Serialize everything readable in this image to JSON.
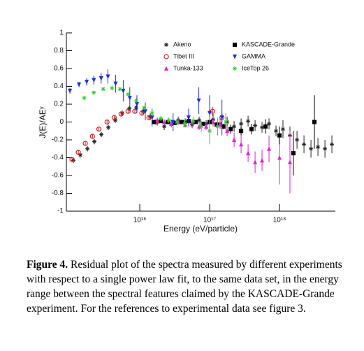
{
  "chart_data": {
    "type": "scatter",
    "log_x": true,
    "x_label": "Energy (eV/particle)",
    "y_label": "J(E)/AEᵞ",
    "xlim": [
      890000000000000.0,
      6.3e+18
    ],
    "ylim": [
      -1,
      1
    ],
    "xticks": [
      {
        "value": 1e+16,
        "label": "10¹⁶"
      },
      {
        "value": 1e+17,
        "label": "10¹⁷"
      },
      {
        "value": 1e+18,
        "label": "10¹⁸"
      }
    ],
    "yticks": [
      1,
      0.8,
      0.6,
      0.4,
      0.2,
      0,
      -0.2,
      -0.4,
      -0.6,
      -0.8,
      -1
    ],
    "legend": "upper right",
    "series": [
      {
        "name": "Akeno",
        "color": "#222222",
        "marker": "star",
        "x": [
          1120000000000000.0,
          1410000000000000.0,
          1780000000000000.0,
          2240000000000000.0,
          2820000000000000.0,
          3550000000000000.0,
          4470000000000000.0,
          5620000000000000.0,
          7080000000000000.0,
          8910000000000000.0,
          1.12e+16,
          1.41e+16,
          1.78e+16,
          2.24e+16,
          2.82e+16,
          3.55e+16,
          4.47e+16,
          5.62e+16,
          7.08e+16,
          8.91e+16,
          1.12e+17,
          1.41e+17,
          1.78e+17,
          2.24e+17,
          2.82e+17,
          3.55e+17,
          4.47e+17,
          5.62e+17,
          7.08e+17,
          8.91e+17,
          1.12e+18,
          1.41e+18,
          1.78e+18,
          2.24e+18,
          2.82e+18,
          3.55e+18,
          4.47e+18,
          5.62e+18
        ],
        "values": [
          -0.43,
          -0.37,
          -0.3,
          -0.22,
          -0.14,
          -0.06,
          0.02,
          0.1,
          0.15,
          0.16,
          0.12,
          0.06,
          0.0,
          -0.05,
          -0.02,
          0.02,
          0.0,
          -0.03,
          0.02,
          -0.02,
          0.03,
          -0.02,
          0.0,
          -0.05,
          -0.02,
          0.01,
          -0.04,
          -0.06,
          -0.02,
          -0.1,
          -0.08,
          -0.15,
          -0.2,
          -0.25,
          -0.3,
          -0.28,
          -0.3,
          -0.25
        ],
        "errors": [
          0.03,
          0.03,
          0.03,
          0.03,
          0.03,
          0.03,
          0.03,
          0.03,
          0.03,
          0.03,
          0.04,
          0.04,
          0.04,
          0.04,
          0.04,
          0.04,
          0.04,
          0.04,
          0.04,
          0.04,
          0.06,
          0.06,
          0.06,
          0.06,
          0.06,
          0.06,
          0.06,
          0.06,
          0.06,
          0.06,
          0.1,
          0.1,
          0.1,
          0.1,
          0.1,
          0.1,
          0.1,
          0.1
        ]
      },
      {
        "name": "Tibet III",
        "color": "#d62020",
        "marker": "circle",
        "x": [
          1070000000000000.0,
          1320000000000000.0,
          1660000000000000.0,
          2100000000000000.0,
          2600000000000000.0,
          3400000000000000.0,
          4300000000000000.0,
          5400000000000000.0,
          6800000000000000.0,
          8500000000000000.0,
          1.07e+16,
          1.35e+16,
          1.7e+16,
          1.1e+17,
          1.5e+17
        ],
        "values": [
          -0.42,
          -0.34,
          -0.24,
          -0.16,
          -0.08,
          0.0,
          0.05,
          0.09,
          0.12,
          0.12,
          0.1,
          0.05,
          0.0,
          0.12,
          0.05
        ],
        "errors": [
          0.02,
          0.02,
          0.02,
          0.02,
          0.02,
          0.02,
          0.02,
          0.02,
          0.02,
          0.02,
          0.02,
          0.02,
          0.02,
          0.05,
          0.05
        ]
      },
      {
        "name": "Tunka-133",
        "color": "#e020d0",
        "marker": "triangle-up",
        "x": [
          1.78e+16,
          2.24e+16,
          2.82e+16,
          3.55e+16,
          4.47e+16,
          5.62e+16,
          7.08e+16,
          8.91e+16,
          1.12e+17,
          1.41e+17,
          1.78e+17,
          2.24e+17,
          2.82e+17,
          3.55e+17,
          4.47e+17,
          5.62e+17,
          7.08e+17,
          1e+18,
          1.41e+18
        ],
        "values": [
          0.02,
          0.0,
          -0.02,
          0.0,
          -0.03,
          0.0,
          -0.05,
          -0.05,
          0.0,
          -0.03,
          -0.1,
          -0.2,
          -0.25,
          -0.35,
          -0.45,
          -0.43,
          -0.3,
          -0.4,
          -0.45
        ],
        "errors": [
          0.03,
          0.03,
          0.03,
          0.03,
          0.03,
          0.03,
          0.04,
          0.04,
          0.05,
          0.05,
          0.06,
          0.08,
          0.1,
          0.1,
          0.12,
          0.12,
          0.15,
          0.3,
          0.35
        ]
      },
      {
        "name": "KASCADE-Grande",
        "color": "#000000",
        "marker": "square",
        "x": [
          1.58e+16,
          2e+16,
          2.51e+16,
          3.16e+16,
          3.98e+16,
          5.01e+16,
          6.31e+16,
          7.94e+16,
          1e+17,
          1.26e+17,
          1.58e+17,
          2e+17,
          2.82e+17,
          3.98e+17,
          6.31e+17,
          1e+18,
          1.58e+18,
          3.16e+18
        ],
        "values": [
          0.0,
          0.01,
          0.0,
          -0.01,
          0.0,
          0.01,
          0.0,
          -0.02,
          0.0,
          -0.03,
          -0.05,
          -0.08,
          -0.1,
          -0.08,
          -0.05,
          -0.15,
          -0.35,
          0.0
        ],
        "errors": [
          0.02,
          0.02,
          0.02,
          0.02,
          0.02,
          0.02,
          0.02,
          0.02,
          0.03,
          0.03,
          0.03,
          0.05,
          0.05,
          0.06,
          0.08,
          0.1,
          0.25,
          0.3
        ]
      },
      {
        "name": "GAMMA",
        "color": "#1a2ee0",
        "marker": "triangle-down",
        "x": [
          1000000000000000.0,
          1350000000000000.0,
          1740000000000000.0,
          2200000000000000.0,
          2800000000000000.0,
          3500000000000000.0,
          4500000000000000.0,
          5800000000000000.0,
          7200000000000000.0,
          9100000000000000.0,
          1.2e+16,
          1.5e+16,
          3e+16,
          5e+16,
          7e+16,
          1e+17,
          1.5e+17
        ],
        "values": [
          0.35,
          0.42,
          0.45,
          0.47,
          0.49,
          0.51,
          0.43,
          0.35,
          0.27,
          0.2,
          0.12,
          0.05,
          0.0,
          0.05,
          0.24,
          0.1,
          0.05
        ],
        "errors": [
          0.03,
          0.03,
          0.04,
          0.05,
          0.06,
          0.08,
          0.1,
          0.12,
          0.12,
          0.1,
          0.1,
          0.1,
          0.1,
          0.1,
          0.15,
          0.2,
          0.2
        ]
      },
      {
        "name": "IceTop 26",
        "color": "#30d030",
        "marker": "star",
        "x": [
          1600000000000000.0,
          2200000000000000.0,
          3000000000000000.0,
          4000000000000000.0,
          5200000000000000.0,
          6800000000000000.0,
          8900000000000000.0,
          1.15e+16,
          1.5e+16,
          2e+16,
          2.6e+16,
          3.4e+16,
          4.4e+16,
          5.8e+16,
          7.6e+16,
          1e+17,
          1.3e+17,
          1.7e+17
        ],
        "values": [
          0.27,
          0.33,
          0.37,
          0.38,
          0.37,
          0.31,
          0.24,
          0.16,
          0.1,
          0.04,
          0.02,
          0.0,
          -0.02,
          0.01,
          -0.05,
          -0.1,
          -0.05,
          0.0
        ],
        "errors": [
          0.02,
          0.02,
          0.02,
          0.02,
          0.02,
          0.02,
          0.02,
          0.02,
          0.03,
          0.03,
          0.03,
          0.03,
          0.04,
          0.05,
          0.06,
          0.15,
          0.1,
          0.1
        ]
      }
    ]
  },
  "caption": {
    "label": "Figure 4.",
    "text": "Residual plot of the spectra measured by different experiments with respect to a single power law fit, to the same data set, in the energy range between the spectral features claimed by the KASCADE-Grande experiment. For the references to experimental data see figure 3."
  }
}
